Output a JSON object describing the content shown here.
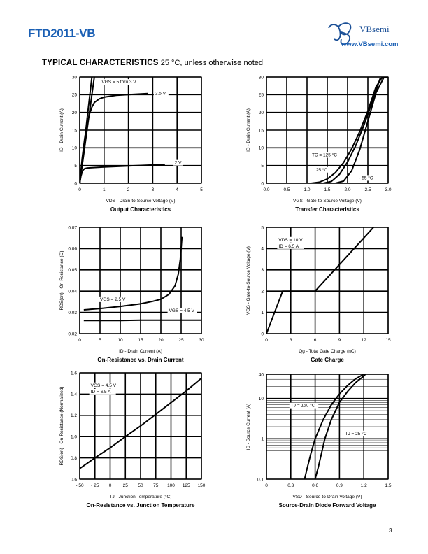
{
  "header": {
    "part_number": "FTD2011-VB",
    "brand": "VBsemi",
    "url": "www.VBsemi.com",
    "logo_icon": "vbsemi-logo-icon"
  },
  "section": {
    "title": "TYPICAL CHARACTERISTICS",
    "subtitle": "25 °C, unless otherwise noted"
  },
  "footer": {
    "page_number": "3"
  },
  "chart_data": [
    {
      "type": "line",
      "title": "Output Characteristics",
      "xlabel": "VDS - Drain-to-Source Voltage (V)",
      "ylabel": "ID - Drain Current (A)",
      "xlim": [
        0,
        5
      ],
      "ylim": [
        0,
        30
      ],
      "xticks": [
        "0",
        "1",
        "2",
        "3",
        "4",
        "5"
      ],
      "yticks": [
        "0",
        "5",
        "10",
        "15",
        "20",
        "25",
        "30"
      ],
      "grid": true,
      "series": [
        {
          "name": "VGS = 5 thru 3 V",
          "x": [
            0,
            0.1,
            0.2,
            0.3,
            0.4,
            0.5
          ],
          "y": [
            0,
            6,
            12,
            18,
            24,
            30
          ]
        },
        {
          "name": "",
          "x": [
            0,
            0.1,
            0.2,
            0.3,
            0.4,
            0.5,
            0.6
          ],
          "y": [
            0,
            5,
            10,
            15,
            20,
            25,
            30
          ]
        },
        {
          "name": "2.5 V",
          "x": [
            0,
            0.1,
            0.2,
            0.3,
            0.4,
            0.5,
            0.6,
            0.8,
            1,
            1.5,
            2,
            2.8
          ],
          "y": [
            0,
            7,
            12.5,
            16.5,
            19.5,
            21.5,
            22.8,
            23.8,
            24.3,
            24.8,
            25,
            25.3
          ]
        },
        {
          "name": "2 V",
          "x": [
            0,
            0.05,
            0.1,
            0.15,
            0.2,
            0.3,
            0.5,
            1,
            2,
            3.5
          ],
          "y": [
            0,
            2,
            3.2,
            3.8,
            4.1,
            4.3,
            4.4,
            4.6,
            4.9,
            5.3
          ]
        }
      ],
      "annotations": [
        {
          "text": "VGS = 5 thru 3 V",
          "x": 0.9,
          "y": 28.2
        },
        {
          "text": "2.5 V",
          "x": 3.1,
          "y": 25
        },
        {
          "text": "2 V",
          "x": 3.9,
          "y": 5.4
        }
      ]
    },
    {
      "type": "line",
      "title": "Transfer Characteristics",
      "xlabel": "VGS - Gate-to-Source Voltage (V)",
      "ylabel": "ID - Drain Current (A)",
      "xlim": [
        0,
        3
      ],
      "ylim": [
        0,
        30
      ],
      "xticks": [
        "0.0",
        "0.5",
        "1.0",
        "1.5",
        "2.0",
        "2.5",
        "3.0"
      ],
      "yticks": [
        "0",
        "5",
        "10",
        "15",
        "20",
        "25",
        "30"
      ],
      "grid": true,
      "series": [
        {
          "name": "TC = 125 °C",
          "x": [
            1.1,
            1.3,
            1.5,
            1.7,
            1.9,
            2.1,
            2.3,
            2.5,
            2.7,
            2.86
          ],
          "y": [
            0,
            0.3,
            1.2,
            3,
            5.8,
            9.7,
            14.6,
            20.4,
            27.2,
            30
          ]
        },
        {
          "name": "25 °C",
          "x": [
            1.4,
            1.6,
            1.8,
            2.0,
            2.2,
            2.4,
            2.6,
            2.8,
            2.94
          ],
          "y": [
            0,
            0.5,
            2.5,
            6,
            10.6,
            16.3,
            22.7,
            29.5,
            30
          ]
        },
        {
          "name": "- 55 °C",
          "x": [
            1.7,
            1.9,
            2.1,
            2.3,
            2.5,
            2.7,
            2.9,
            3.0
          ],
          "y": [
            0,
            0.6,
            3.5,
            9.5,
            17.5,
            25.5,
            30,
            30
          ]
        }
      ],
      "annotations": [
        {
          "text": "TC = 125 °C",
          "x": 1.12,
          "y": 7.6
        },
        {
          "text": "25 °C",
          "x": 1.22,
          "y": 3.4
        },
        {
          "text": "- 55 °C",
          "x": 2.28,
          "y": 1.1
        }
      ]
    },
    {
      "type": "line",
      "title": "On-Resistance vs. Drain Current",
      "xlabel": "ID - Drain Current (A)",
      "ylabel": "RDS(on) - On-Resistance (Ω)",
      "xlim": [
        0,
        30
      ],
      "ylim": [
        0.02,
        0.07
      ],
      "xticks": [
        "0",
        "5",
        "10",
        "15",
        "20",
        "25",
        "30"
      ],
      "yticks": [
        "0.02",
        "0.03",
        "0.04",
        "0.05",
        "0.06",
        "0.07"
      ],
      "grid": true,
      "series": [
        {
          "name": "VGS = 2.5 V",
          "x": [
            1,
            5,
            10,
            15,
            18,
            20,
            22,
            23.5,
            24.3,
            24.8,
            25.2
          ],
          "y": [
            0.0312,
            0.0318,
            0.0328,
            0.034,
            0.0352,
            0.0362,
            0.0385,
            0.0425,
            0.048,
            0.055,
            0.0655
          ]
        },
        {
          "name": "VGS = 4.5 V",
          "x": [
            1,
            5,
            10,
            15,
            20,
            25,
            30
          ],
          "y": [
            0.0262,
            0.0262,
            0.0262,
            0.0263,
            0.0263,
            0.0263,
            0.0263
          ]
        }
      ],
      "annotations": [
        {
          "text": "VGS = 2.5 V",
          "x": 5,
          "y": 0.0355
        },
        {
          "text": "VGS = 4.5 V",
          "x": 22,
          "y": 0.0302
        }
      ]
    },
    {
      "type": "line",
      "title": "Gate Charge",
      "xlabel": "Qg - Total Gate Charge (nC)",
      "ylabel": "VGS - Gate-to-Source Voltage (V)",
      "xlim": [
        0,
        15
      ],
      "ylim": [
        0,
        5
      ],
      "xticks": [
        "0",
        "3",
        "6",
        "9",
        "12",
        "15"
      ],
      "yticks": [
        "0",
        "1",
        "2",
        "3",
        "4",
        "5"
      ],
      "grid": true,
      "series": [
        {
          "name": "VDS = 10 V, ID = 6.5 A",
          "x": [
            0,
            2,
            6,
            13.2
          ],
          "y": [
            0,
            2,
            2,
            5
          ]
        }
      ],
      "annotations": [
        {
          "text": "VDS = 10 V",
          "x": 1.5,
          "y": 4.35
        },
        {
          "text": "ID = 6.5 A",
          "x": 1.5,
          "y": 4.05
        }
      ]
    },
    {
      "type": "line",
      "title": "On-Resistance vs. Junction Temperature",
      "xlabel": "TJ - Junction Temperature (°C)",
      "ylabel": "RDS(on) - On-Resistance (Normalized)",
      "xlim": [
        -50,
        150
      ],
      "ylim": [
        0.6,
        1.6
      ],
      "xticks": [
        "- 50",
        "- 25",
        "0",
        "25",
        "50",
        "75",
        "100",
        "125",
        "150"
      ],
      "yticks": [
        "0.6",
        "0.8",
        "1.0",
        "1.2",
        "1.4",
        "1.6"
      ],
      "grid": true,
      "series": [
        {
          "name": "VGS = 4.5 V, ID = 6.5 A",
          "x": [
            -50,
            -25,
            0,
            25,
            50,
            75,
            100,
            125,
            150
          ],
          "y": [
            0.7,
            0.8,
            0.895,
            1.0,
            1.1,
            1.21,
            1.32,
            1.43,
            1.55
          ]
        }
      ],
      "annotations": [
        {
          "text": "VGS = 4.5 V",
          "x": -32,
          "y": 1.47
        },
        {
          "text": "ID = 6.5 A",
          "x": -32,
          "y": 1.41
        }
      ]
    },
    {
      "type": "line",
      "title": "Source-Drain Diode Forward Voltage",
      "xlabel": "VSD - Source-to-Drain Voltage (V)",
      "ylabel": "IS - Source Current (A)",
      "xlim": [
        0,
        1.5
      ],
      "ylim": [
        0.1,
        40
      ],
      "yscale": "log",
      "xticks": [
        "0",
        "0.3",
        "0.6",
        "0.9",
        "1.2",
        "1.5"
      ],
      "yticks": [
        "0.1",
        "1",
        "10",
        "40"
      ],
      "grid": true,
      "series": [
        {
          "name": "TJ = 150 °C",
          "x": [
            0.47,
            0.5,
            0.55,
            0.6,
            0.7,
            0.8,
            0.9,
            1.0,
            1.1,
            1.2
          ],
          "y": [
            0.1,
            0.18,
            0.45,
            1,
            3,
            7,
            13,
            21,
            31,
            40
          ]
        },
        {
          "name": "TJ = 25 °C",
          "x": [
            0.6,
            0.64,
            0.68,
            0.72,
            0.8,
            0.9,
            1.0,
            1.1,
            1.2,
            1.22
          ],
          "y": [
            0.1,
            0.2,
            0.45,
            1,
            3,
            8,
            15,
            25,
            36,
            40
          ]
        }
      ],
      "annotations": [
        {
          "text": "TJ = 150 °C",
          "x": 0.3,
          "y": 6.2
        },
        {
          "text": "TJ = 25 °C",
          "x": 0.97,
          "y": 1.25
        }
      ]
    }
  ]
}
